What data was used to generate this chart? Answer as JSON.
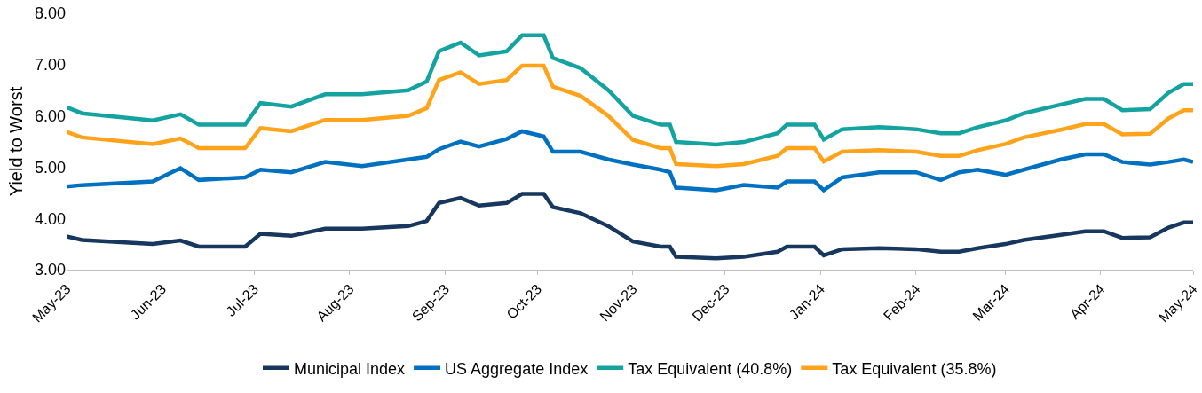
{
  "chart_data": {
    "type": "line",
    "ylabel": "Yield to Worst",
    "legend": "bottom",
    "grid": false,
    "marker": "none",
    "line_style": "solid",
    "x": [
      "2023-05-01",
      "2023-05-06",
      "2023-05-29",
      "2023-06-07",
      "2023-06-13",
      "2023-06-28",
      "2023-07-03",
      "2023-07-13",
      "2023-07-24",
      "2023-08-05",
      "2023-08-20",
      "2023-08-26",
      "2023-08-30",
      "2023-09-06",
      "2023-09-12",
      "2023-09-21",
      "2023-09-26",
      "2023-10-03",
      "2023-10-06",
      "2023-10-15",
      "2023-10-24",
      "2023-11-01",
      "2023-11-10",
      "2023-11-13",
      "2023-11-15",
      "2023-11-28",
      "2023-12-07",
      "2023-12-18",
      "2023-12-21",
      "2023-12-30",
      "2024-01-02",
      "2024-01-08",
      "2024-01-20",
      "2024-02-01",
      "2024-02-09",
      "2024-02-15",
      "2024-02-21",
      "2024-03-01",
      "2024-03-07",
      "2024-03-19",
      "2024-03-27",
      "2024-04-02",
      "2024-04-08",
      "2024-04-17",
      "2024-04-23",
      "2024-04-28",
      "2024-05-01"
    ],
    "series": [
      {
        "name": "Municipal Index",
        "color": "#17375e",
        "values": [
          3.65,
          3.58,
          3.5,
          3.57,
          3.45,
          3.45,
          3.7,
          3.66,
          3.8,
          3.8,
          3.85,
          3.95,
          4.3,
          4.4,
          4.25,
          4.3,
          4.48,
          4.48,
          4.22,
          4.1,
          3.85,
          3.55,
          3.45,
          3.45,
          3.25,
          3.22,
          3.25,
          3.35,
          3.45,
          3.45,
          3.28,
          3.4,
          3.42,
          3.4,
          3.35,
          3.35,
          3.42,
          3.5,
          3.58,
          3.68,
          3.75,
          3.75,
          3.62,
          3.63,
          3.82,
          3.92,
          3.92
        ]
      },
      {
        "name": "US Aggregate Index",
        "color": "#0070c0",
        "values": [
          4.62,
          4.65,
          4.72,
          4.98,
          4.75,
          4.8,
          4.95,
          4.9,
          5.1,
          5.02,
          5.15,
          5.2,
          5.35,
          5.5,
          5.4,
          5.55,
          5.7,
          5.6,
          5.3,
          5.3,
          5.15,
          5.05,
          4.95,
          4.9,
          4.6,
          4.55,
          4.65,
          4.6,
          4.72,
          4.72,
          4.55,
          4.8,
          4.9,
          4.9,
          4.75,
          4.9,
          4.95,
          4.85,
          4.95,
          5.15,
          5.25,
          5.25,
          5.1,
          5.05,
          5.1,
          5.15,
          5.1
        ]
      },
      {
        "name": "Tax Equivalent (40.8%)",
        "color": "#14a3a0",
        "values": [
          6.17,
          6.05,
          5.91,
          6.03,
          5.83,
          5.83,
          6.25,
          6.18,
          6.42,
          6.42,
          6.5,
          6.67,
          7.26,
          7.43,
          7.18,
          7.26,
          7.57,
          7.57,
          7.13,
          6.93,
          6.5,
          6.0,
          5.83,
          5.83,
          5.49,
          5.44,
          5.49,
          5.66,
          5.83,
          5.83,
          5.54,
          5.74,
          5.78,
          5.74,
          5.66,
          5.66,
          5.78,
          5.91,
          6.05,
          6.22,
          6.33,
          6.33,
          6.11,
          6.13,
          6.45,
          6.62,
          6.62
        ]
      },
      {
        "name": "Tax Equivalent (35.8%)",
        "color": "#ffa31a",
        "values": [
          5.69,
          5.58,
          5.45,
          5.56,
          5.37,
          5.37,
          5.76,
          5.7,
          5.92,
          5.92,
          6.0,
          6.15,
          6.7,
          6.85,
          6.62,
          6.7,
          6.98,
          6.98,
          6.57,
          6.39,
          6.0,
          5.53,
          5.37,
          5.37,
          5.06,
          5.02,
          5.06,
          5.22,
          5.37,
          5.37,
          5.11,
          5.3,
          5.33,
          5.3,
          5.22,
          5.22,
          5.33,
          5.45,
          5.58,
          5.73,
          5.84,
          5.84,
          5.64,
          5.65,
          5.95,
          6.11,
          6.11
        ]
      }
    ],
    "xlim": [
      "2023-05-01",
      "2024-05-01"
    ],
    "xticks": [
      {
        "value": "2023-05-01",
        "label": "May-23"
      },
      {
        "value": "2023-06-01",
        "label": "Jun-23"
      },
      {
        "value": "2023-07-01",
        "label": "Jul-23"
      },
      {
        "value": "2023-08-01",
        "label": "Aug-23"
      },
      {
        "value": "2023-09-01",
        "label": "Sep-23"
      },
      {
        "value": "2023-10-01",
        "label": "Oct-23"
      },
      {
        "value": "2023-11-01",
        "label": "Nov-23"
      },
      {
        "value": "2023-12-01",
        "label": "Dec-23"
      },
      {
        "value": "2024-01-01",
        "label": "Jan-24"
      },
      {
        "value": "2024-02-01",
        "label": "Feb-24"
      },
      {
        "value": "2024-03-01",
        "label": "Mar-24"
      },
      {
        "value": "2024-04-01",
        "label": "Apr-24"
      },
      {
        "value": "2024-05-01",
        "label": "May-24"
      }
    ],
    "ylim": [
      3,
      8
    ],
    "yticks": [
      {
        "value": 3,
        "label": "3.00"
      },
      {
        "value": 4,
        "label": "4.00"
      },
      {
        "value": 5,
        "label": "5.00"
      },
      {
        "value": 6,
        "label": "6.00"
      },
      {
        "value": 7,
        "label": "7.00"
      },
      {
        "value": 8,
        "label": "8.00"
      }
    ]
  }
}
